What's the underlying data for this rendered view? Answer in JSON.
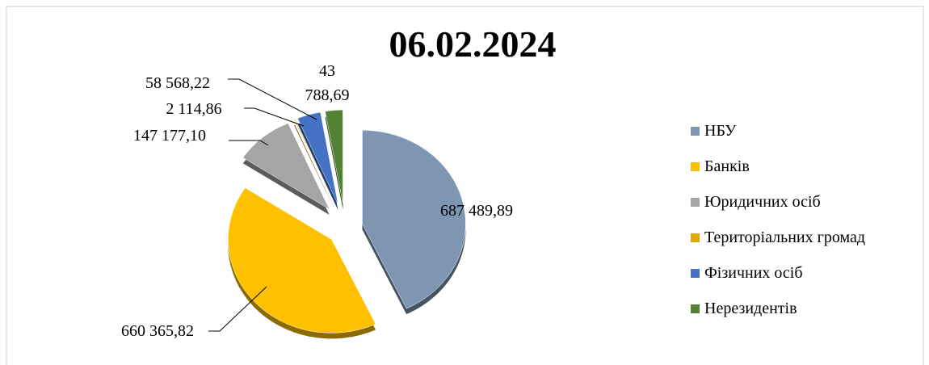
{
  "chart_data": {
    "type": "pie",
    "title": "06.02.2024",
    "categories": [
      "НБУ",
      "Банків",
      "Юридичних осіб",
      "Територіальних громад",
      "Фізичних осіб",
      "Нерезидентів"
    ],
    "values": [
      687489.89,
      660365.82,
      147177.1,
      2114.86,
      58568.22,
      43788.69
    ],
    "value_labels": [
      "687 489,89",
      "660 365,82",
      "147 177,10",
      "2 114,86",
      "58 568,22",
      "43 788,69"
    ],
    "colors": [
      "#7f96b2",
      "#ffc000",
      "#a5a5a5",
      "#e0a800",
      "#4472c4",
      "#548235"
    ],
    "legend": "right"
  }
}
